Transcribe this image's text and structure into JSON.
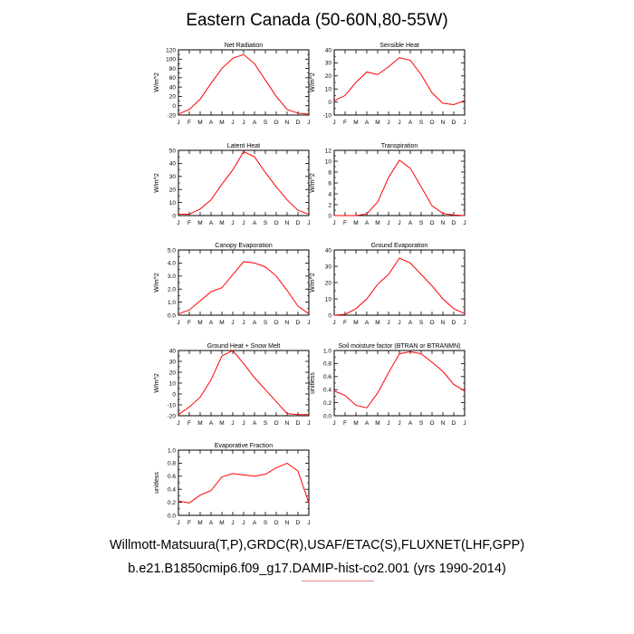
{
  "page": {
    "title": "Eastern Canada (50-60N,80-55W)",
    "footer_line1": "Willmott-Matsuura(T,P),GRDC(R),USAF/ETAC(S),FLUXNET(LHF,GPP)",
    "footer_line2": "b.e21.B1850cmip6.f09_g17.DAMIP-hist-co2.001 (yrs 1990-2014)",
    "line_color": "#ff0000"
  },
  "chart_data": [
    {
      "type": "line",
      "title": "Net Radiation",
      "ylabel": "W/m^2",
      "categories": [
        "J",
        "F",
        "M",
        "A",
        "M",
        "J",
        "J",
        "A",
        "S",
        "O",
        "N",
        "D",
        "J"
      ],
      "ylim": [
        -20,
        120
      ],
      "yticks": [
        -20,
        0,
        20,
        40,
        60,
        80,
        100,
        120
      ],
      "ytick_labels": [
        "-20",
        "0",
        "20",
        "40",
        "60",
        "80",
        "100",
        "120"
      ],
      "values": [
        -18,
        -8,
        14,
        48,
        80,
        102,
        110,
        90,
        55,
        20,
        -8,
        -16,
        -18
      ]
    },
    {
      "type": "line",
      "title": "Sensible Heat",
      "ylabel": "W/m^2",
      "categories": [
        "J",
        "F",
        "M",
        "A",
        "M",
        "J",
        "J",
        "A",
        "S",
        "O",
        "N",
        "D",
        "J"
      ],
      "ylim": [
        -10,
        40
      ],
      "yticks": [
        -10,
        0,
        10,
        20,
        30,
        40
      ],
      "ytick_labels": [
        "-10",
        "0",
        "10",
        "20",
        "30",
        "40"
      ],
      "values": [
        1,
        5,
        15,
        23,
        21,
        27,
        34,
        32,
        21,
        7,
        -1,
        -2,
        1
      ]
    },
    {
      "type": "line",
      "title": "Latent Heat",
      "ylabel": "W/m^2",
      "categories": [
        "J",
        "F",
        "M",
        "A",
        "M",
        "J",
        "J",
        "A",
        "S",
        "O",
        "N",
        "D",
        "J"
      ],
      "ylim": [
        0,
        50
      ],
      "yticks": [
        0,
        10,
        20,
        30,
        40,
        50
      ],
      "ytick_labels": [
        "0",
        "10",
        "20",
        "30",
        "40",
        "50"
      ],
      "values": [
        1,
        1,
        5,
        12,
        24,
        35,
        49,
        45,
        33,
        22,
        12,
        4,
        1
      ]
    },
    {
      "type": "line",
      "title": "Transpiration",
      "ylabel": "W/m^2",
      "categories": [
        "J",
        "F",
        "M",
        "A",
        "M",
        "J",
        "J",
        "A",
        "S",
        "O",
        "N",
        "D",
        "J"
      ],
      "ylim": [
        0,
        12
      ],
      "yticks": [
        0,
        2,
        4,
        6,
        8,
        10,
        12
      ],
      "ytick_labels": [
        "0",
        "2",
        "4",
        "6",
        "8",
        "10",
        "12"
      ],
      "values": [
        0,
        0,
        0,
        0.3,
        2.5,
        7,
        10.2,
        8.7,
        5.3,
        1.8,
        0.4,
        0.1,
        0
      ]
    },
    {
      "type": "line",
      "title": "Canopy Evaporation",
      "ylabel": "W/m^2",
      "categories": [
        "J",
        "F",
        "M",
        "A",
        "M",
        "J",
        "J",
        "A",
        "S",
        "O",
        "N",
        "D",
        "J"
      ],
      "ylim": [
        0,
        5
      ],
      "yticks": [
        0,
        1,
        2,
        3,
        4,
        5
      ],
      "ytick_labels": [
        "0.0",
        "1.0",
        "2.0",
        "3.0",
        "4.0",
        "5.0"
      ],
      "values": [
        0.1,
        0.4,
        1.1,
        1.8,
        2.1,
        3.1,
        4.1,
        4.0,
        3.7,
        3.0,
        1.9,
        0.7,
        0.1
      ]
    },
    {
      "type": "line",
      "title": "Ground Evaporation",
      "ylabel": "W/m^2",
      "categories": [
        "J",
        "F",
        "M",
        "A",
        "M",
        "J",
        "J",
        "A",
        "S",
        "O",
        "N",
        "D",
        "J"
      ],
      "ylim": [
        0,
        40
      ],
      "yticks": [
        0,
        10,
        20,
        30,
        40
      ],
      "ytick_labels": [
        "0",
        "10",
        "20",
        "30",
        "40"
      ],
      "values": [
        0,
        0.5,
        4,
        10,
        19,
        25,
        35,
        32,
        25,
        18,
        10,
        4,
        1
      ]
    },
    {
      "type": "line",
      "title": "Ground Heat + Snow Melt",
      "ylabel": "W/m^2",
      "categories": [
        "J",
        "F",
        "M",
        "A",
        "M",
        "J",
        "J",
        "A",
        "S",
        "O",
        "N",
        "D",
        "J"
      ],
      "ylim": [
        -20,
        40
      ],
      "yticks": [
        -20,
        -10,
        0,
        10,
        20,
        30,
        40
      ],
      "ytick_labels": [
        "-20",
        "-10",
        "0",
        "10",
        "20",
        "30",
        "40"
      ],
      "values": [
        -19,
        -12,
        -3,
        13,
        35,
        40,
        28,
        15,
        4,
        -7,
        -18,
        -19,
        -19
      ]
    },
    {
      "type": "line",
      "title": "Soil moisture factor (BTRAN or BTRANMN)",
      "ylabel": "unitless",
      "categories": [
        "J",
        "F",
        "M",
        "A",
        "M",
        "J",
        "J",
        "A",
        "S",
        "O",
        "N",
        "D",
        "J"
      ],
      "ylim": [
        0,
        1
      ],
      "yticks": [
        0,
        0.2,
        0.4,
        0.6,
        0.8,
        1.0
      ],
      "ytick_labels": [
        "0.0",
        "0.2",
        "0.4",
        "0.6",
        "0.8",
        "1.0"
      ],
      "values": [
        0.38,
        0.31,
        0.16,
        0.12,
        0.35,
        0.66,
        0.95,
        0.98,
        0.95,
        0.82,
        0.68,
        0.48,
        0.38
      ]
    },
    {
      "type": "line",
      "title": "Evaporative Fraction",
      "ylabel": "unitless",
      "categories": [
        "J",
        "F",
        "M",
        "A",
        "M",
        "J",
        "J",
        "A",
        "S",
        "O",
        "N",
        "D",
        "J"
      ],
      "ylim": [
        0,
        1
      ],
      "yticks": [
        0,
        0.2,
        0.4,
        0.6,
        0.8,
        1.0
      ],
      "ytick_labels": [
        "0.0",
        "0.2",
        "0.4",
        "0.6",
        "0.8",
        "1.0"
      ],
      "values": [
        0.22,
        0.19,
        0.31,
        0.38,
        0.59,
        0.64,
        0.62,
        0.6,
        0.63,
        0.73,
        0.8,
        0.68,
        0.19
      ]
    }
  ]
}
